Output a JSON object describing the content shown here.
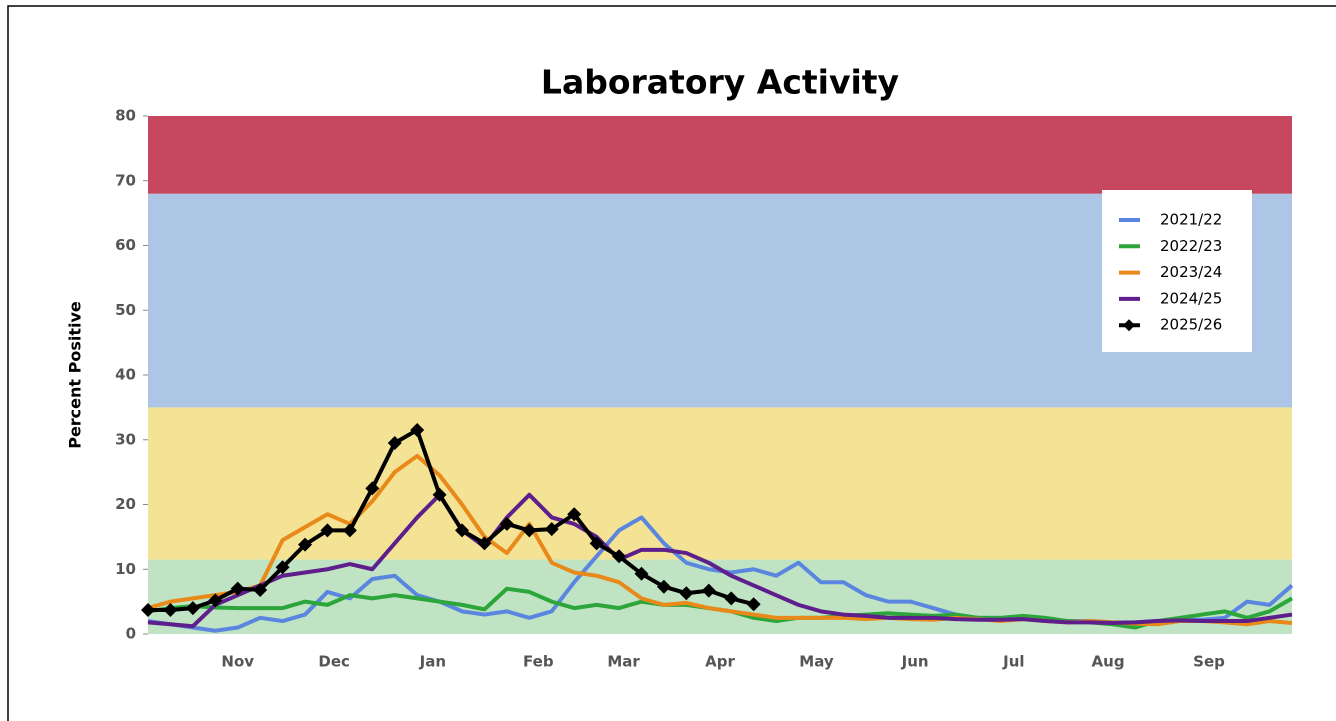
{
  "chart_data": {
    "type": "line",
    "title": "Laboratory Activity",
    "y_label": "Percent Positive",
    "x": [
      0,
      1,
      2,
      3,
      4,
      5,
      6,
      7,
      8,
      9,
      10,
      11,
      12,
      13,
      14,
      15,
      16,
      17,
      18,
      19,
      20,
      21,
      22,
      23,
      24,
      25,
      26,
      27,
      28,
      29,
      30,
      31,
      32,
      33,
      34,
      35,
      36,
      37,
      38,
      39,
      40,
      41,
      42,
      43,
      44,
      45,
      46,
      47,
      48,
      49,
      50,
      51
    ],
    "xlim": [
      0,
      51
    ],
    "xticks": [
      {
        "value": 4,
        "label": "Nov"
      },
      {
        "value": 8.3,
        "label": "Dec"
      },
      {
        "value": 12.7,
        "label": "Jan"
      },
      {
        "value": 17.4,
        "label": "Feb"
      },
      {
        "value": 21.2,
        "label": "Mar"
      },
      {
        "value": 25.5,
        "label": "Apr"
      },
      {
        "value": 29.8,
        "label": "May"
      },
      {
        "value": 34.2,
        "label": "Jun"
      },
      {
        "value": 38.6,
        "label": "Jul"
      },
      {
        "value": 42.8,
        "label": "Aug"
      },
      {
        "value": 47.3,
        "label": "Sep"
      }
    ],
    "ylim": [
      0,
      80
    ],
    "yticks": [
      0,
      10,
      20,
      30,
      40,
      50,
      60,
      70,
      80
    ],
    "bands": [
      {
        "from": 0,
        "to": 11.5,
        "color": "#c0e4c3"
      },
      {
        "from": 11.5,
        "to": 35,
        "color": "#f4e394"
      },
      {
        "from": 35,
        "to": 68,
        "color": "#adc6e5"
      },
      {
        "from": 68,
        "to": 80,
        "color": "#c84760"
      }
    ],
    "legend": "upper right",
    "series": [
      {
        "name": "2021/22",
        "color": "#5b86e0",
        "values": [
          2,
          1.5,
          1,
          0.5,
          1,
          2.5,
          2,
          3,
          6.5,
          5.5,
          8.5,
          9,
          6,
          5,
          3.5,
          3,
          3.5,
          2.5,
          3.5,
          8,
          12,
          16,
          18,
          14,
          11,
          10,
          9.5,
          10,
          9,
          11,
          8,
          8,
          6,
          5,
          5,
          4,
          3,
          2.5,
          2.5,
          2.3,
          2.2,
          2,
          2,
          1.8,
          1.8,
          2,
          2.2,
          2.2,
          2.5,
          5,
          4.5,
          7.5
        ]
      },
      {
        "name": "2022/23",
        "color": "#2ca53a",
        "values": [
          3.5,
          4,
          4.3,
          4.1,
          4,
          4,
          4,
          5,
          4.5,
          6,
          5.5,
          6,
          5.5,
          5,
          4.5,
          3.8,
          7,
          6.5,
          5,
          4,
          4.5,
          4,
          5,
          4.5,
          4.5,
          4,
          3.5,
          2.5,
          2,
          2.5,
          2.5,
          2.8,
          3,
          3.2,
          3,
          2.8,
          3,
          2.5,
          2.5,
          2.8,
          2.5,
          2,
          1.8,
          1.5,
          1,
          2,
          2.5,
          3,
          3.5,
          2.5,
          3.5,
          5.5
        ]
      },
      {
        "name": "2023/24",
        "color": "#e8891a",
        "values": [
          4,
          5,
          5.5,
          6,
          6.5,
          7.5,
          14.5,
          16.5,
          18.5,
          17,
          20.5,
          25,
          27.5,
          24.5,
          20,
          15,
          12.5,
          17,
          11,
          9.5,
          9,
          8,
          5.5,
          4.5,
          4.8,
          4,
          3.5,
          3,
          2.5,
          2.5,
          2.5,
          2.5,
          2.3,
          2.5,
          2.3,
          2.2,
          2.5,
          2.3,
          2,
          2.3,
          2,
          1.8,
          2,
          1.8,
          1.6,
          1.5,
          2,
          2,
          1.8,
          1.5,
          2,
          1.7
        ]
      },
      {
        "name": "2024/25",
        "color": "#5e1e8c",
        "values": [
          1.8,
          1.5,
          1.2,
          4.5,
          6,
          7.5,
          9,
          9.5,
          10,
          10.8,
          10,
          14,
          18,
          21.5,
          16,
          13.5,
          18,
          21.5,
          18,
          17,
          15,
          11.5,
          13,
          13,
          12.5,
          11,
          9,
          7.5,
          6,
          4.5,
          3.5,
          3,
          2.8,
          2.5,
          2.5,
          2.5,
          2.3,
          2.2,
          2.2,
          2.3,
          2,
          1.8,
          1.8,
          1.7,
          1.8,
          2,
          2.1,
          2,
          2,
          2,
          2.5,
          3
        ]
      },
      {
        "name": "2025/26",
        "color": "#000000",
        "marker": "diamond",
        "values": [
          3.7,
          3.7,
          4,
          5.2,
          7,
          6.8,
          10.3,
          13.8,
          16,
          16,
          22.5,
          29.5,
          31.5,
          21.5,
          16,
          14,
          17,
          16,
          16.2,
          18.5,
          14,
          12,
          9.3,
          7.3,
          6.3,
          6.7,
          5.5,
          4.6,
          null,
          null,
          null,
          null,
          null,
          null,
          null,
          null,
          null,
          null,
          null,
          null,
          null,
          null,
          null,
          null,
          null,
          null,
          null,
          null,
          null,
          null,
          null,
          null
        ]
      }
    ]
  }
}
